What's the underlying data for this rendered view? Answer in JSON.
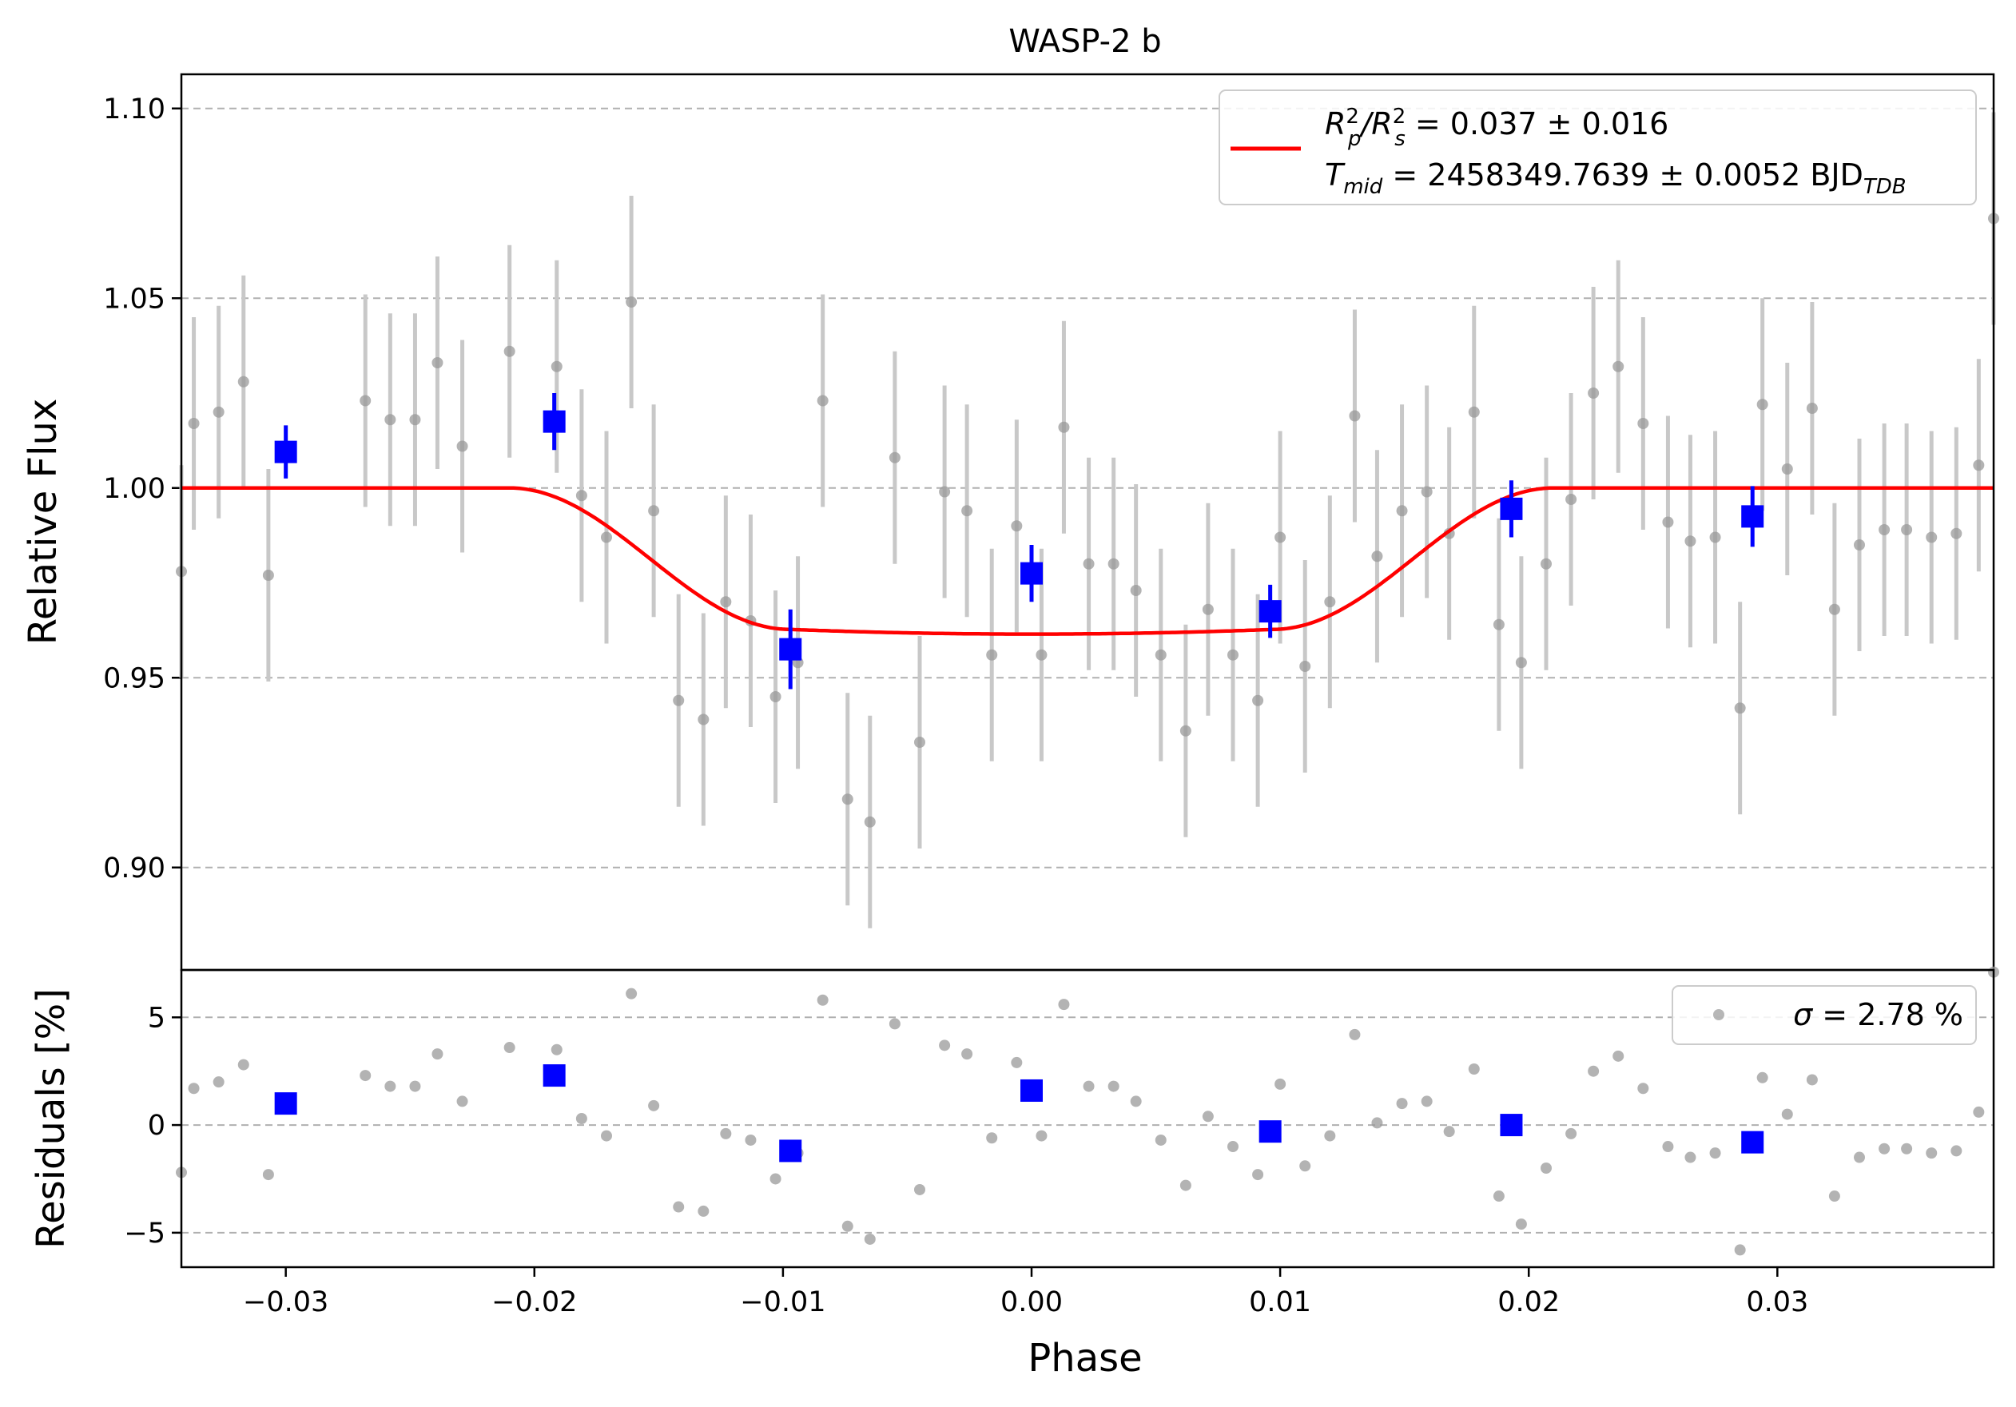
{
  "colors": {
    "raw": "#999999",
    "raw_err": "#c8c8c8",
    "binned": "#0000ff",
    "model": "#ff0000",
    "grid": "#b0b0b0"
  },
  "chart_data": [
    {
      "type": "scatter",
      "panel": "main",
      "title": "WASP-2 b",
      "xlabel": "",
      "ylabel": "Relative Flux",
      "xlim": [
        -0.0342,
        0.0387
      ],
      "ylim": [
        0.873,
        1.109
      ],
      "yticks": [
        "0.90",
        "0.95",
        "1.00",
        "1.05",
        "1.10"
      ],
      "grid": "y-dashed",
      "legend_position": "top-right",
      "legend": {
        "line1": {
          "base": "R",
          "sup1": "2",
          "sub1": "p",
          "mid": "/R",
          "sup2": "2",
          "sub2": "s",
          "rest": " = 0.037 ± 0.016"
        },
        "line2": {
          "base": "T",
          "sub1": "mid",
          "rest": " = 2458349.7639 ± 0.0052 BJD",
          "sub2": "TDB"
        }
      },
      "raw_x": [
        -0.0342,
        -0.0337,
        -0.0327,
        -0.0317,
        -0.0307,
        -0.0268,
        -0.0258,
        -0.0248,
        -0.0239,
        -0.0229,
        -0.021,
        -0.0191,
        -0.0181,
        -0.0171,
        -0.0161,
        -0.0152,
        -0.0142,
        -0.0132,
        -0.0123,
        -0.0113,
        -0.0103,
        -0.0094,
        -0.0084,
        -0.0074,
        -0.0065,
        -0.0055,
        -0.0045,
        -0.0035,
        -0.0026,
        -0.0016,
        -0.0006,
        0.0004,
        0.0013,
        0.0023,
        0.0033,
        0.0042,
        0.0052,
        0.0062,
        0.0071,
        0.0081,
        0.0091,
        0.01,
        0.011,
        0.012,
        0.013,
        0.0139,
        0.0149,
        0.0159,
        0.0168,
        0.0178,
        0.0188,
        0.0197,
        0.0207,
        0.0217,
        0.0226,
        0.0236,
        0.0246,
        0.0256,
        0.0265,
        0.0275,
        0.0285,
        0.0294,
        0.0304,
        0.0314,
        0.0323,
        0.0333,
        0.0343,
        0.0352,
        0.0362,
        0.0372,
        0.0381,
        0.0387
      ],
      "raw_y": [
        0.978,
        1.017,
        1.02,
        1.028,
        0.977,
        1.023,
        1.018,
        1.018,
        1.033,
        1.011,
        1.036,
        1.032,
        0.998,
        0.987,
        1.049,
        0.994,
        0.944,
        0.939,
        0.97,
        0.965,
        0.945,
        0.954,
        1.023,
        0.918,
        0.912,
        1.008,
        0.933,
        0.999,
        0.994,
        0.956,
        0.99,
        0.956,
        1.016,
        0.98,
        0.98,
        0.973,
        0.956,
        0.936,
        0.968,
        0.956,
        0.944,
        0.987,
        0.953,
        0.97,
        1.019,
        0.982,
        0.994,
        0.999,
        0.988,
        1.02,
        0.964,
        0.954,
        0.98,
        0.997,
        1.025,
        1.032,
        1.017,
        0.991,
        0.986,
        0.987,
        0.942,
        1.022,
        1.005,
        1.021,
        0.968,
        0.985,
        0.989,
        0.989,
        0.987,
        0.988,
        1.006,
        1.071
      ],
      "raw_err": 0.028,
      "binned_x": [
        -0.03,
        -0.0192,
        -0.0097,
        0.0,
        0.0096,
        0.0193,
        0.029
      ],
      "binned_y": [
        1.0095,
        1.0175,
        0.9575,
        0.9775,
        0.9675,
        0.9945,
        0.9925
      ],
      "binned_err": [
        0.007,
        0.0075,
        0.0105,
        0.0075,
        0.007,
        0.0075,
        0.008
      ],
      "model": {
        "name": "",
        "baseline": 1.0,
        "depth": 0.0385,
        "t14_half": 0.021,
        "t23_half": 0.0097
      }
    },
    {
      "type": "scatter",
      "panel": "residuals",
      "xlabel": "Phase",
      "ylabel": "Residuals [%]",
      "xlim": [
        -0.0342,
        0.0387
      ],
      "ylim": [
        -6.6,
        7.2
      ],
      "yticks": [
        "5",
        "0",
        "−5"
      ],
      "xticks": [
        "−0.03",
        "−0.02",
        "−0.01",
        "0.00",
        "0.01",
        "0.02",
        "0.03"
      ],
      "grid": "y-dashed",
      "legend_position": "top-right",
      "legend": {
        "sigma": "σ",
        "rest": " = 2.78 %"
      },
      "residuals": [
        -2.2,
        1.7,
        2.0,
        2.8,
        -2.3,
        2.3,
        1.8,
        1.8,
        3.3,
        1.1,
        3.6,
        3.5,
        0.3,
        -0.5,
        6.1,
        0.9,
        -3.8,
        -4.0,
        -0.4,
        -0.7,
        -2.5,
        -1.3,
        5.8,
        -4.7,
        -5.3,
        4.7,
        -3.0,
        3.7,
        3.3,
        -0.6,
        2.9,
        -0.5,
        5.6,
        1.8,
        1.8,
        1.1,
        -0.7,
        -2.8,
        0.4,
        -1.0,
        -2.3,
        1.9,
        -1.9,
        -0.5,
        4.2,
        0.1,
        1.0,
        1.1,
        -0.3,
        2.6,
        -3.3,
        -4.6,
        -2.0,
        -0.4,
        2.5,
        3.2,
        1.7,
        -1.0,
        -1.5,
        -1.3,
        -5.8,
        2.2,
        0.5,
        2.1,
        -3.3,
        -1.5,
        -1.1,
        -1.1,
        -1.3,
        -1.2,
        0.6,
        7.1
      ],
      "binned_residuals": [
        1.0,
        2.3,
        -1.2,
        1.6,
        -0.3,
        0.0,
        -0.8
      ]
    }
  ]
}
